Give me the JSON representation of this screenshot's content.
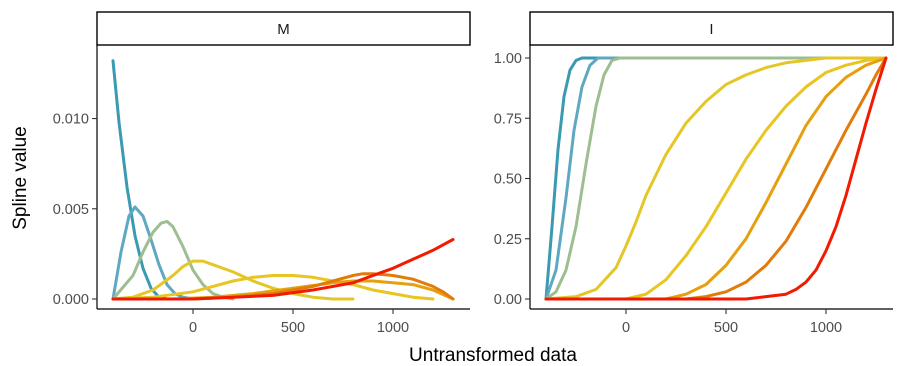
{
  "chart_data": {
    "type": "line",
    "xlabel": "Untransformed data",
    "ylabel": "Spline value",
    "grid": false,
    "legend": "none",
    "series_colors": [
      "#3B9AB2",
      "#5FA8C2",
      "#9EBE91",
      "#E4C727",
      "#E8C520",
      "#E6A00E",
      "#E27B0A",
      "#F21A00"
    ],
    "x_range": [
      -400,
      1300
    ],
    "panels": [
      {
        "strip": "M",
        "xlim": [
          -400,
          1300
        ],
        "ylim": [
          0,
          0.0133
        ],
        "x_ticks": [
          0,
          500,
          1000
        ],
        "x_tick_labels": [
          "0",
          "500",
          "1000"
        ],
        "y_ticks": [
          0,
          0.005,
          0.01
        ],
        "y_tick_labels": [
          "0.000",
          "0.005",
          "0.010"
        ],
        "series": [
          {
            "x": [
              -400,
              -370,
              -330,
              -290,
              -250,
              -210,
              -170,
              -130
            ],
            "y": [
              0.0132,
              0.0098,
              0.0062,
              0.0035,
              0.0017,
              0.0006,
              0.0001,
              0
            ]
          },
          {
            "x": [
              -400,
              -360,
              -320,
              -290,
              -250,
              -210,
              -170,
              -130,
              -90,
              -50,
              0
            ],
            "y": [
              0,
              0.0026,
              0.0046,
              0.0051,
              0.0046,
              0.0033,
              0.0019,
              0.0008,
              0.0003,
              0.0001,
              0
            ]
          },
          {
            "x": [
              -400,
              -300,
              -250,
              -200,
              -160,
              -130,
              -100,
              -50,
              0,
              50,
              100,
              150,
              200
            ],
            "y": [
              0,
              0.0013,
              0.0026,
              0.0037,
              0.0042,
              0.0043,
              0.004,
              0.0029,
              0.0016,
              0.0008,
              0.0003,
              0.0001,
              0
            ]
          },
          {
            "x": [
              -400,
              -300,
              -200,
              -100,
              -50,
              0,
              50,
              100,
              200,
              300,
              400,
              500,
              600,
              700,
              800
            ],
            "y": [
              0,
              0.0001,
              0.0005,
              0.0013,
              0.0018,
              0.0021,
              0.0021,
              0.0019,
              0.0015,
              0.001,
              0.0006,
              0.0003,
              0.0001,
              0,
              0
            ]
          },
          {
            "x": [
              -400,
              -200,
              0,
              100,
              200,
              300,
              400,
              500,
              600,
              700,
              800,
              900,
              1000,
              1100,
              1200
            ],
            "y": [
              0,
              0.0001,
              0.0004,
              0.0007,
              0.001,
              0.0012,
              0.0013,
              0.0013,
              0.0012,
              0.001,
              0.0008,
              0.0005,
              0.0003,
              0.0001,
              0
            ]
          },
          {
            "x": [
              -400,
              -100,
              100,
              300,
              500,
              700,
              800,
              900,
              1000,
              1100,
              1200,
              1300
            ],
            "y": [
              0,
              0,
              0.0001,
              0.0003,
              0.0006,
              0.0009,
              0.001,
              0.001,
              0.0009,
              0.0008,
              0.0005,
              0
            ]
          },
          {
            "x": [
              -400,
              0,
              200,
              400,
              600,
              700,
              800,
              850,
              900,
              1000,
              1100,
              1200,
              1250,
              1300
            ],
            "y": [
              0,
              0,
              0.0001,
              0.0003,
              0.0007,
              0.001,
              0.0013,
              0.0014,
              0.0014,
              0.0013,
              0.0011,
              0.0007,
              0.0004,
              0
            ]
          },
          {
            "x": [
              -400,
              0,
              200,
              400,
              600,
              800,
              900,
              1000,
              1100,
              1200,
              1300
            ],
            "y": [
              0,
              0,
              0.0001,
              0.0002,
              0.0005,
              0.0009,
              0.0013,
              0.0017,
              0.0022,
              0.0027,
              0.0033
            ]
          }
        ]
      },
      {
        "strip": "I",
        "xlim": [
          -400,
          1300
        ],
        "ylim": [
          0,
          1
        ],
        "x_ticks": [
          0,
          500,
          1000
        ],
        "x_tick_labels": [
          "0",
          "500",
          "1000"
        ],
        "y_ticks": [
          0,
          0.25,
          0.5,
          0.75,
          1
        ],
        "y_tick_labels": [
          "0.00",
          "0.25",
          "0.50",
          "0.75",
          "1.00"
        ],
        "series": [
          {
            "x": [
              -400,
              -370,
              -340,
              -310,
              -280,
              -250,
              -220,
              -190,
              -160,
              1300
            ],
            "y": [
              0,
              0.3,
              0.62,
              0.84,
              0.95,
              0.99,
              1,
              1,
              1,
              1
            ]
          },
          {
            "x": [
              -400,
              -350,
              -300,
              -260,
              -220,
              -180,
              -140,
              -110,
              1300
            ],
            "y": [
              0,
              0.12,
              0.42,
              0.7,
              0.88,
              0.97,
              1,
              1,
              1
            ]
          },
          {
            "x": [
              -400,
              -350,
              -300,
              -250,
              -200,
              -150,
              -110,
              -70,
              -30,
              1300
            ],
            "y": [
              0,
              0.03,
              0.12,
              0.3,
              0.56,
              0.8,
              0.93,
              0.99,
              1,
              1
            ]
          },
          {
            "x": [
              -400,
              -250,
              -150,
              -50,
              0,
              50,
              100,
              200,
              300,
              400,
              500,
              600,
              700,
              800,
              900,
              1000,
              1100,
              1200,
              1300
            ],
            "y": [
              0,
              0.01,
              0.04,
              0.13,
              0.22,
              0.32,
              0.43,
              0.6,
              0.73,
              0.82,
              0.89,
              0.93,
              0.96,
              0.98,
              0.99,
              1,
              1,
              1,
              1
            ]
          },
          {
            "x": [
              -400,
              0,
              100,
              200,
              300,
              400,
              500,
              600,
              700,
              800,
              900,
              1000,
              1100,
              1200,
              1300
            ],
            "y": [
              0,
              0,
              0.02,
              0.08,
              0.18,
              0.3,
              0.44,
              0.58,
              0.7,
              0.8,
              0.88,
              0.94,
              0.97,
              0.99,
              1
            ]
          },
          {
            "x": [
              -400,
              200,
              300,
              400,
              500,
              600,
              700,
              800,
              900,
              1000,
              1100,
              1200,
              1300
            ],
            "y": [
              0,
              0,
              0.02,
              0.06,
              0.14,
              0.25,
              0.4,
              0.56,
              0.72,
              0.84,
              0.92,
              0.97,
              1
            ]
          },
          {
            "x": [
              -400,
              300,
              400,
              500,
              600,
              700,
              800,
              900,
              1000,
              1100,
              1200,
              1250,
              1300
            ],
            "y": [
              0,
              0,
              0.01,
              0.03,
              0.07,
              0.14,
              0.24,
              0.38,
              0.54,
              0.7,
              0.85,
              0.93,
              1
            ]
          },
          {
            "x": [
              -400,
              500,
              600,
              700,
              800,
              850,
              900,
              950,
              1000,
              1050,
              1100,
              1150,
              1200,
              1250,
              1300
            ],
            "y": [
              0,
              0,
              0,
              0.01,
              0.02,
              0.04,
              0.07,
              0.12,
              0.2,
              0.3,
              0.43,
              0.58,
              0.73,
              0.87,
              1
            ]
          }
        ]
      }
    ]
  }
}
